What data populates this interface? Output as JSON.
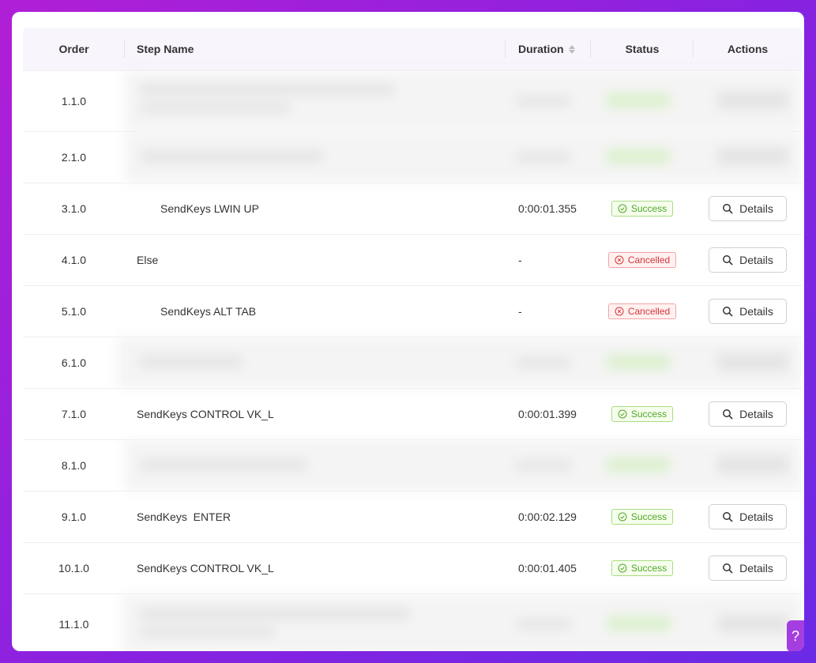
{
  "headers": {
    "order": "Order",
    "step_name": "Step Name",
    "duration": "Duration",
    "status": "Status",
    "actions": "Actions"
  },
  "rows": [
    {
      "order": "1.1.0",
      "obscured": true
    },
    {
      "order": "2.1.0",
      "obscured": true
    },
    {
      "order": "3.1.0",
      "name": "SendKeys LWIN UP",
      "duration": "0:00:01.355",
      "status": "Success",
      "action": "Details"
    },
    {
      "order": "4.1.0",
      "name": "Else",
      "duration": "-",
      "status": "Cancelled",
      "action": "Details"
    },
    {
      "order": "5.1.0",
      "name": "SendKeys ALT TAB",
      "duration": "-",
      "status": "Cancelled",
      "action": "Details"
    },
    {
      "order": "6.1.0",
      "obscured": true
    },
    {
      "order": "7.1.0",
      "name": "SendKeys CONTROL VK_L",
      "duration": "0:00:01.399",
      "status": "Success",
      "action": "Details"
    },
    {
      "order": "8.1.0",
      "obscured": true
    },
    {
      "order": "9.1.0",
      "name": "SendKeys  ENTER",
      "duration": "0:00:02.129",
      "status": "Success",
      "action": "Details"
    },
    {
      "order": "10.1.0",
      "name": "SendKeys CONTROL VK_L",
      "duration": "0:00:01.405",
      "status": "Success",
      "action": "Details"
    },
    {
      "order": "11.1.0",
      "obscured": true
    }
  ],
  "help_label": "?",
  "colors": {
    "success": "#52a52a",
    "cancelled": "#d4363b",
    "accent": "#9b2fe0"
  }
}
